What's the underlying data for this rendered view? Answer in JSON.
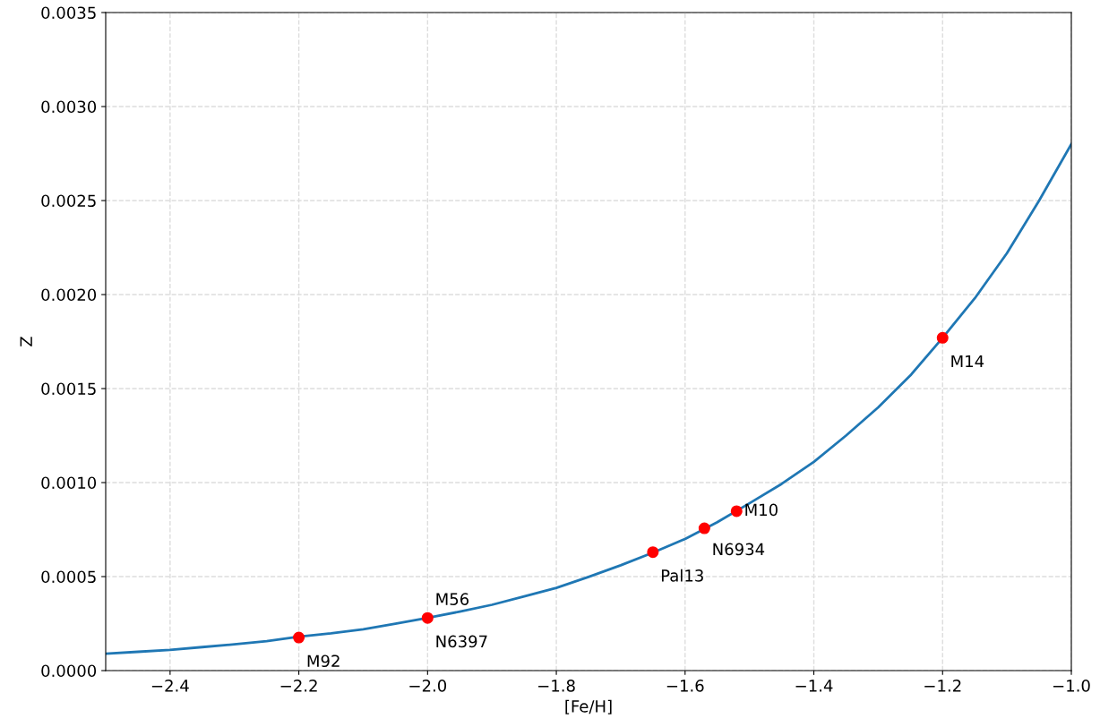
{
  "chart_data": {
    "type": "line",
    "xlabel": "[Fe/H]",
    "ylabel": "Z",
    "series": [
      {
        "color": "#1f77b4",
        "marker": "none",
        "x": [
          -2.5,
          -2.45,
          -2.4,
          -2.35,
          -2.3,
          -2.25,
          -2.2,
          -2.15,
          -2.1,
          -2.05,
          -2.0,
          -1.95,
          -1.9,
          -1.85,
          -1.8,
          -1.75,
          -1.7,
          -1.65,
          -1.6,
          -1.55,
          -1.5,
          -1.45,
          -1.4,
          -1.35,
          -1.3,
          -1.25,
          -1.2,
          -1.15,
          -1.1,
          -1.05,
          -1.0
        ],
        "values": [
          9e-05,
          0.0001,
          0.00011,
          0.000125,
          0.00014,
          0.000157,
          0.00018,
          0.000198,
          0.00022,
          0.000249,
          0.00028,
          0.000314,
          0.00035,
          0.000395,
          0.00044,
          0.000498,
          0.00056,
          0.000627,
          0.0007,
          0.000789,
          0.00089,
          0.000993,
          0.00111,
          0.00125,
          0.0014,
          0.00157,
          0.00177,
          0.00198,
          0.00222,
          0.0025,
          0.0028
        ]
      },
      {
        "type": "scatter",
        "color": "#ff0000",
        "marker": "circle",
        "x": [
          -2.2,
          -2.0,
          -1.65,
          -1.57,
          -1.52,
          -1.2
        ],
        "values": [
          0.000176,
          0.00028,
          0.00063,
          0.000757,
          0.000848,
          0.00177
        ]
      }
    ],
    "annotations": [
      {
        "text": "M92",
        "x": -2.2,
        "y": 0.000176
      },
      {
        "text": "M56",
        "x": -2.0,
        "y": 0.00028
      },
      {
        "text": "N6397",
        "x": -2.0,
        "y": 0.00028
      },
      {
        "text": "Pal13",
        "x": -1.65,
        "y": 0.00063
      },
      {
        "text": "N6934",
        "x": -1.57,
        "y": 0.000757
      },
      {
        "text": "M10",
        "x": -1.52,
        "y": 0.000848
      },
      {
        "text": "M14",
        "x": -1.2,
        "y": 0.00177
      }
    ],
    "xlim": [
      -2.5,
      -1.0
    ],
    "xticks": [
      {
        "value": -2.4,
        "label": "−2.4"
      },
      {
        "value": -2.2,
        "label": "−2.2"
      },
      {
        "value": -2.0,
        "label": "−2.0"
      },
      {
        "value": -1.8,
        "label": "−1.8"
      },
      {
        "value": -1.6,
        "label": "−1.6"
      },
      {
        "value": -1.4,
        "label": "−1.4"
      },
      {
        "value": -1.2,
        "label": "−1.2"
      },
      {
        "value": -1.0,
        "label": "−1.0"
      }
    ],
    "ylim": [
      0,
      0.0035
    ],
    "yticks": [
      {
        "value": 0,
        "label": "0.0000"
      },
      {
        "value": 0.0005,
        "label": "0.0005"
      },
      {
        "value": 0.001,
        "label": "0.0010"
      },
      {
        "value": 0.0015,
        "label": "0.0015"
      },
      {
        "value": 0.002,
        "label": "0.0020"
      },
      {
        "value": 0.0025,
        "label": "0.0025"
      },
      {
        "value": 0.003,
        "label": "0.0030"
      },
      {
        "value": 0.0035,
        "label": "0.0035"
      }
    ],
    "grid": true,
    "line_style": "solid"
  }
}
